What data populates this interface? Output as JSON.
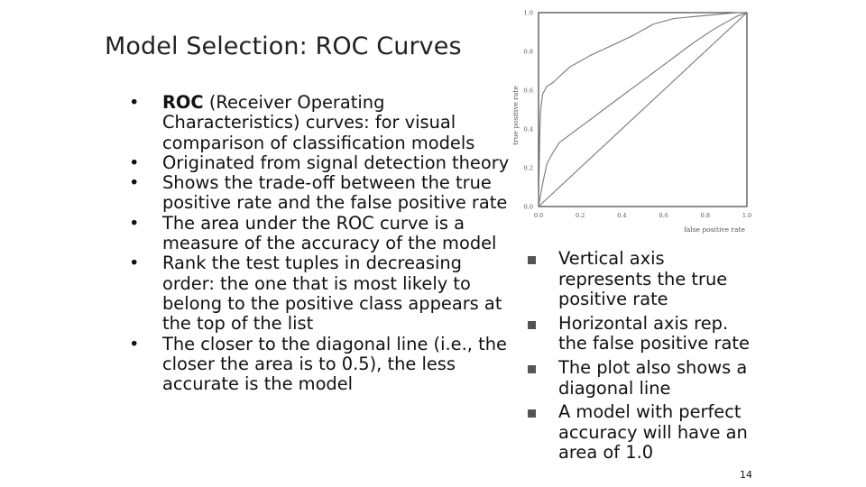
{
  "slide": {
    "title": "Model Selection: ROC Curves",
    "page_number": "14",
    "left_bullets": [
      {
        "bold": "ROC",
        "text": " (Receiver Operating Characteristics) curves: for visual comparison of classification models"
      },
      {
        "bold": "",
        "text": "Originated from signal detection theory"
      },
      {
        "bold": "",
        "text": "Shows the trade-off between the true positive rate and the false positive rate"
      },
      {
        "bold": "",
        "text": "The area under the ROC curve is a measure of the accuracy of the model"
      },
      {
        "bold": "",
        "text": "Rank the test tuples in decreasing order: the one that is most likely to belong to the positive class appears at the top of the list"
      },
      {
        "bold": "",
        "text": "The closer to the diagonal line (i.e., the closer the area is to 0.5), the less accurate is the model"
      }
    ],
    "right_bullets": [
      "Vertical axis represents the true positive rate",
      "Horizontal axis rep. the false positive rate",
      "The plot also shows a diagonal line",
      "A model with perfect accuracy will have an area of 1.0"
    ],
    "bullet_char": "•"
  },
  "chart_data": {
    "type": "line",
    "title": "",
    "xlabel": "false positive rate",
    "ylabel": "true positive rate",
    "xlim": [
      0.0,
      1.0
    ],
    "ylim": [
      0.0,
      1.0
    ],
    "x_ticks": [
      "0.0",
      "0.2",
      "0.4",
      "0.6",
      "0.8",
      "1.0"
    ],
    "y_ticks": [
      "0.0",
      "0.2",
      "0.4",
      "0.6",
      "0.8",
      "1.0"
    ],
    "grid": false,
    "legend": "none",
    "series": [
      {
        "x": [
          0.0,
          1.0
        ],
        "y": [
          0.0,
          1.0
        ],
        "color": "#777777"
      },
      {
        "x": [
          0.0,
          0.02,
          0.04,
          0.07,
          0.1,
          0.15,
          0.25,
          0.35,
          0.45,
          0.55,
          0.65,
          0.75,
          0.85,
          0.95,
          1.0
        ],
        "y": [
          0.0,
          0.12,
          0.22,
          0.28,
          0.33,
          0.37,
          0.45,
          0.53,
          0.61,
          0.69,
          0.77,
          0.85,
          0.92,
          0.98,
          1.0
        ],
        "color": "#777777"
      },
      {
        "x": [
          0.0,
          0.005,
          0.01,
          0.02,
          0.04,
          0.07,
          0.1,
          0.15,
          0.25,
          0.35,
          0.45,
          0.55,
          0.65,
          0.75,
          0.85,
          0.95,
          1.0
        ],
        "y": [
          0.0,
          0.35,
          0.5,
          0.58,
          0.62,
          0.64,
          0.67,
          0.72,
          0.78,
          0.83,
          0.88,
          0.94,
          0.97,
          0.98,
          0.99,
          1.0,
          1.0
        ],
        "color": "#777777"
      }
    ]
  }
}
